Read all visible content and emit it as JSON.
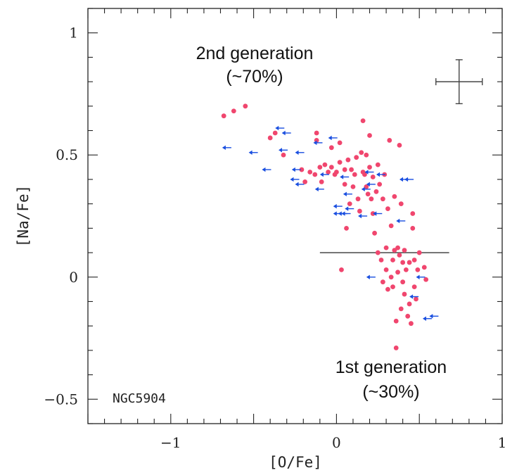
{
  "chart_data": {
    "type": "scatter",
    "title": "",
    "xlabel": "[O/Fe]",
    "ylabel": "[Na/Fe]",
    "xlim": [
      -1.5,
      1.0
    ],
    "ylim": [
      -0.6,
      1.1
    ],
    "x_ticks": [
      -1,
      0,
      1
    ],
    "x_tick_labels": [
      "−1",
      "0",
      "1"
    ],
    "y_ticks": [
      -0.5,
      0,
      0.5,
      1
    ],
    "y_tick_labels": [
      "−0.5",
      "0",
      "0.5",
      "1"
    ],
    "panel_label": "NGC5904",
    "annotations": {
      "second_generation": {
        "line1": "2nd generation",
        "line2": "(~70%)"
      },
      "first_generation": {
        "line1": "1st generation",
        "line2": "(~30%)"
      }
    },
    "separator_line": {
      "x": [
        -0.1,
        0.68
      ],
      "y": 0.1
    },
    "error_bar": {
      "x": 0.74,
      "y": 0.8,
      "xerr": 0.14,
      "yerr": 0.09
    },
    "colors": {
      "measurements": "#f0466e",
      "upper_limits": "#1a4fe0",
      "axes": "#222222",
      "separator": "#555555"
    },
    "series": [
      {
        "marker": "circle",
        "points": [
          [
            -0.68,
            0.66
          ],
          [
            -0.62,
            0.68
          ],
          [
            -0.55,
            0.7
          ],
          [
            -0.4,
            0.57
          ],
          [
            -0.37,
            0.59
          ],
          [
            -0.32,
            0.5
          ],
          [
            -0.21,
            0.44
          ],
          [
            -0.19,
            0.39
          ],
          [
            -0.16,
            0.43
          ],
          [
            -0.13,
            0.42
          ],
          [
            -0.12,
            0.59
          ],
          [
            -0.12,
            0.56
          ],
          [
            -0.1,
            0.45
          ],
          [
            -0.09,
            0.39
          ],
          [
            -0.07,
            0.46
          ],
          [
            -0.05,
            0.43
          ],
          [
            -0.03,
            0.53
          ],
          [
            -0.03,
            0.45
          ],
          [
            -0.01,
            0.42
          ],
          [
            0.0,
            0.43
          ],
          [
            0.02,
            0.47
          ],
          [
            0.02,
            0.55
          ],
          [
            0.03,
            0.03
          ],
          [
            0.05,
            0.44
          ],
          [
            0.05,
            0.38
          ],
          [
            0.06,
            0.2
          ],
          [
            0.07,
            0.48
          ],
          [
            0.08,
            0.3
          ],
          [
            0.09,
            0.44
          ],
          [
            0.1,
            0.37
          ],
          [
            0.11,
            0.42
          ],
          [
            0.12,
            0.49
          ],
          [
            0.13,
            0.32
          ],
          [
            0.14,
            0.27
          ],
          [
            0.15,
            0.51
          ],
          [
            0.16,
            0.64
          ],
          [
            0.16,
            0.43
          ],
          [
            0.17,
            0.42
          ],
          [
            0.18,
            0.5
          ],
          [
            0.18,
            0.37
          ],
          [
            0.19,
            0.34
          ],
          [
            0.2,
            0.58
          ],
          [
            0.2,
            0.45
          ],
          [
            0.21,
            0.32
          ],
          [
            0.22,
            0.41
          ],
          [
            0.22,
            0.26
          ],
          [
            0.23,
            0.18
          ],
          [
            0.24,
            0.35
          ],
          [
            0.25,
            0.46
          ],
          [
            0.25,
            0.1
          ],
          [
            0.26,
            0.38
          ],
          [
            0.27,
            0.07
          ],
          [
            0.28,
            0.32
          ],
          [
            0.28,
            -0.02
          ],
          [
            0.29,
            0.42
          ],
          [
            0.3,
            0.12
          ],
          [
            0.3,
            0.03
          ],
          [
            0.31,
            0.28
          ],
          [
            0.31,
            -0.05
          ],
          [
            0.32,
            0.56
          ],
          [
            0.33,
            0.21
          ],
          [
            0.33,
            0.0
          ],
          [
            0.34,
            0.07
          ],
          [
            0.34,
            -0.04
          ],
          [
            0.35,
            0.33
          ],
          [
            0.35,
            0.11
          ],
          [
            0.36,
            -0.18
          ],
          [
            0.36,
            -0.29
          ],
          [
            0.37,
            0.12
          ],
          [
            0.37,
            0.02
          ],
          [
            0.38,
            0.54
          ],
          [
            0.38,
            0.09
          ],
          [
            0.39,
            -0.13
          ],
          [
            0.39,
            0.3
          ],
          [
            0.4,
            0.06
          ],
          [
            0.4,
            -0.02
          ],
          [
            0.41,
            0.11
          ],
          [
            0.41,
            -0.07
          ],
          [
            0.42,
            0.03
          ],
          [
            0.43,
            -0.16
          ],
          [
            0.44,
            -0.11
          ],
          [
            0.44,
            0.06
          ],
          [
            0.45,
            -0.19
          ],
          [
            0.46,
            0.2
          ],
          [
            0.46,
            0.26
          ],
          [
            0.47,
            0.07
          ],
          [
            0.47,
            -0.04
          ],
          [
            0.48,
            -0.09
          ],
          [
            0.49,
            0.03
          ],
          [
            0.5,
            0.1
          ],
          [
            0.53,
            0.04
          ],
          [
            0.54,
            -0.01
          ]
        ]
      },
      {
        "marker": "left-arrow",
        "points": [
          [
            -0.66,
            0.53
          ],
          [
            -0.5,
            0.51
          ],
          [
            -0.42,
            0.44
          ],
          [
            -0.34,
            0.61
          ],
          [
            -0.3,
            0.59
          ],
          [
            -0.32,
            0.52
          ],
          [
            -0.22,
            0.51
          ],
          [
            -0.24,
            0.44
          ],
          [
            -0.25,
            0.4
          ],
          [
            -0.22,
            0.38
          ],
          [
            -0.11,
            0.55
          ],
          [
            -0.1,
            0.36
          ],
          [
            -0.07,
            0.42
          ],
          [
            -0.02,
            0.57
          ],
          [
            0.01,
            0.26
          ],
          [
            0.01,
            0.29
          ],
          [
            0.04,
            0.26
          ],
          [
            0.05,
            0.41
          ],
          [
            0.06,
            0.26
          ],
          [
            0.07,
            0.34
          ],
          [
            0.08,
            0.28
          ],
          [
            0.16,
            0.25
          ],
          [
            0.18,
            0.36
          ],
          [
            0.2,
            0.43
          ],
          [
            0.21,
            0.38
          ],
          [
            0.21,
            0.0
          ],
          [
            0.25,
            0.26
          ],
          [
            0.27,
            0.42
          ],
          [
            0.39,
            0.23
          ],
          [
            0.41,
            0.4
          ],
          [
            0.44,
            0.4
          ],
          [
            0.47,
            -0.08
          ],
          [
            0.51,
            0.0
          ],
          [
            0.55,
            -0.17
          ],
          [
            0.59,
            -0.16
          ]
        ]
      }
    ]
  }
}
